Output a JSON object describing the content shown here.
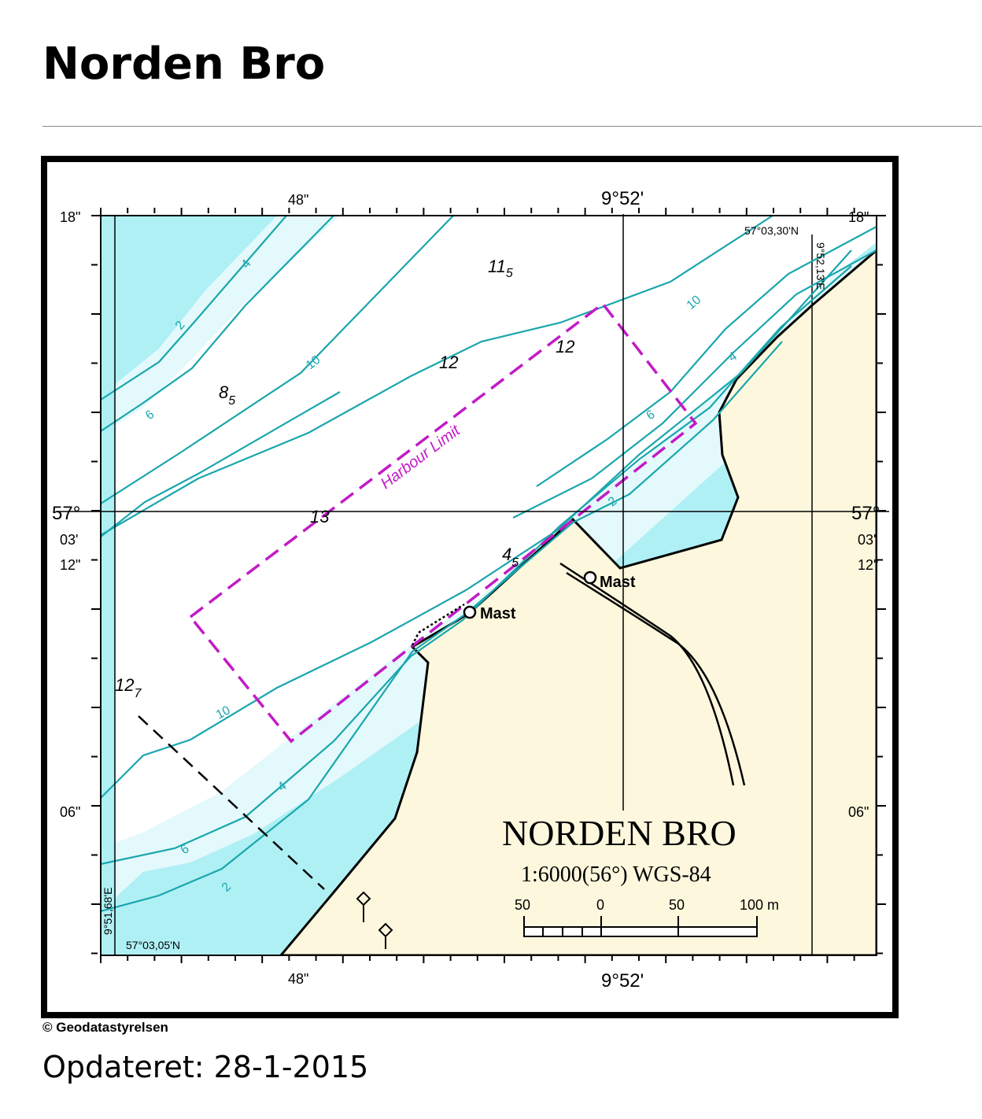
{
  "page": {
    "title": "Norden Bro",
    "copyright": "© Geodatastyrelsen",
    "updated_label": "Opdateret:",
    "updated_date": "28-1-2015"
  },
  "map": {
    "name": "NORDEN BRO",
    "scale_text": "1:6000(56°) WGS-84",
    "scale_bar_labels": [
      "50",
      "0",
      "50",
      "100 m"
    ],
    "area_label": "Harbour Limit",
    "mast_label": "Mast",
    "grid": {
      "top_left_sec": "18\"",
      "top_right_sec": "18\"",
      "left_deg": "57°",
      "left_min": "03'",
      "left_sec": "12\"",
      "right_deg": "57°",
      "right_min": "03'",
      "right_sec": "12\"",
      "left_bottom_sec": "06\"",
      "right_bottom_sec": "06\"",
      "top_lon_sec": "48\"",
      "bottom_lon_sec": "48\"",
      "top_lon_deg": "9°52'",
      "bottom_lon_deg": "9°52'",
      "corner_nw": "57°03,30'N",
      "corner_ne_lon": "9°52,13'E",
      "corner_sw_lat": "57°03,05'N",
      "corner_sw_lon": "9°51,68'E"
    },
    "depths": [
      {
        "main": "11",
        "sub": "5"
      },
      {
        "main": "12",
        "sub": ""
      },
      {
        "main": "12",
        "sub": ""
      },
      {
        "main": "8",
        "sub": "5"
      },
      {
        "main": "13",
        "sub": ""
      },
      {
        "main": "4",
        "sub": "5"
      },
      {
        "main": "12",
        "sub": "7"
      }
    ],
    "contour_labels": [
      "2",
      "4",
      "6",
      "10",
      "10",
      "6",
      "4",
      "2",
      "10",
      "4",
      "6",
      "2"
    ],
    "colors": {
      "land": "#fdf8dd",
      "shallow": "#aff0f5",
      "mid": "#e3f9fb",
      "deep": "#ffffff",
      "contour": "#1aa6ad",
      "harbour_limit": "#c21bc6"
    }
  }
}
